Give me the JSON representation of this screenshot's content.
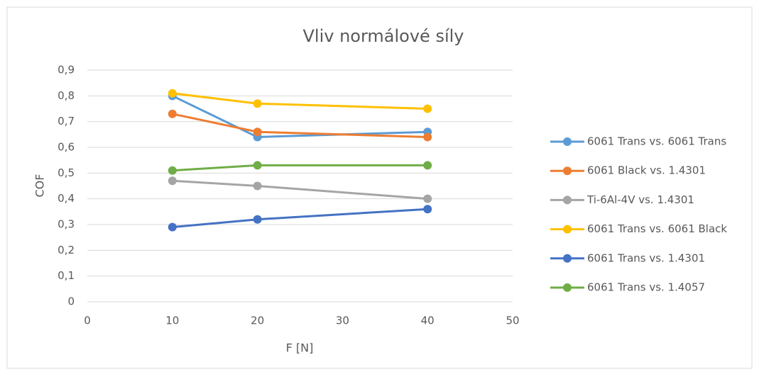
{
  "chart_data": {
    "type": "line",
    "title": "Vliv normálové síly",
    "x_label": "F [N]",
    "y_label": "COF",
    "x": [
      10,
      20,
      40
    ],
    "series": [
      {
        "name": "6061 Trans vs. 6061 Trans",
        "color": "#5b9bd5",
        "values": [
          0.8,
          0.64,
          0.66
        ]
      },
      {
        "name": "6061 Black vs. 1.4301",
        "color": "#ed7d31",
        "values": [
          0.73,
          0.66,
          0.64
        ]
      },
      {
        "name": "Ti-6Al-4V vs. 1.4301",
        "color": "#a5a5a5",
        "values": [
          0.47,
          0.45,
          0.4
        ]
      },
      {
        "name": "6061 Trans vs. 6061 Black",
        "color": "#ffc000",
        "values": [
          0.81,
          0.77,
          0.75
        ]
      },
      {
        "name": "6061 Trans vs. 1.4301",
        "color": "#4472c4",
        "values": [
          0.29,
          0.32,
          0.36
        ]
      },
      {
        "name": "6061 Trans vs. 1.4057",
        "color": "#70ad47",
        "values": [
          0.51,
          0.53,
          0.53
        ]
      }
    ],
    "xlim": [
      0,
      50
    ],
    "xticks": [
      0,
      10,
      20,
      30,
      40,
      50
    ],
    "ylim": [
      0,
      0.9
    ],
    "yticks": [
      0,
      {
        "value": 0.1,
        "label": "0,1"
      },
      {
        "value": 0.2,
        "label": "0,2"
      },
      {
        "value": 0.3,
        "label": "0,3"
      },
      {
        "value": 0.4,
        "label": "0,4"
      },
      {
        "value": 0.5,
        "label": "0,5"
      },
      {
        "value": 0.6,
        "label": "0,6"
      },
      {
        "value": 0.7,
        "label": "0,7"
      },
      {
        "value": 0.8,
        "label": "0,8"
      },
      {
        "value": 0.9,
        "label": "0,9"
      }
    ],
    "grid": true,
    "legend": "right"
  }
}
